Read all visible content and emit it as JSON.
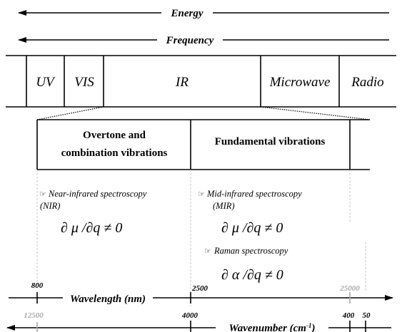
{
  "energy": "Energy",
  "frequency": "Frequency",
  "regions": [
    "UV",
    "VIS",
    "IR",
    "Microwave",
    "Radio"
  ],
  "bands": {
    "overtone": [
      "Overtone and",
      "combination  vibrations"
    ],
    "fundamental": "Fundamental vibrations"
  },
  "methods": {
    "nir": {
      "name": "Near-infrared spectroscopy",
      "abbr": "(NIR)",
      "formula": "∂ μ /∂q ≠ 0"
    },
    "mir": {
      "name": "Mid-infrared spectroscopy",
      "abbr": "(MIR)",
      "formula": "∂ μ /∂q ≠ 0"
    },
    "raman": {
      "name": "Raman spectroscopy",
      "formula": "∂ α /∂q ≠ 0"
    }
  },
  "wavelength": {
    "label": "Wavelength (nm)",
    "ticks": [
      "800",
      "2500",
      "25000"
    ]
  },
  "wavenumber": {
    "label": "Wavenumber (cm",
    "exponent": "-1",
    "suffix": ")",
    "ticks": [
      "12500",
      "4000",
      "400",
      "50"
    ]
  }
}
